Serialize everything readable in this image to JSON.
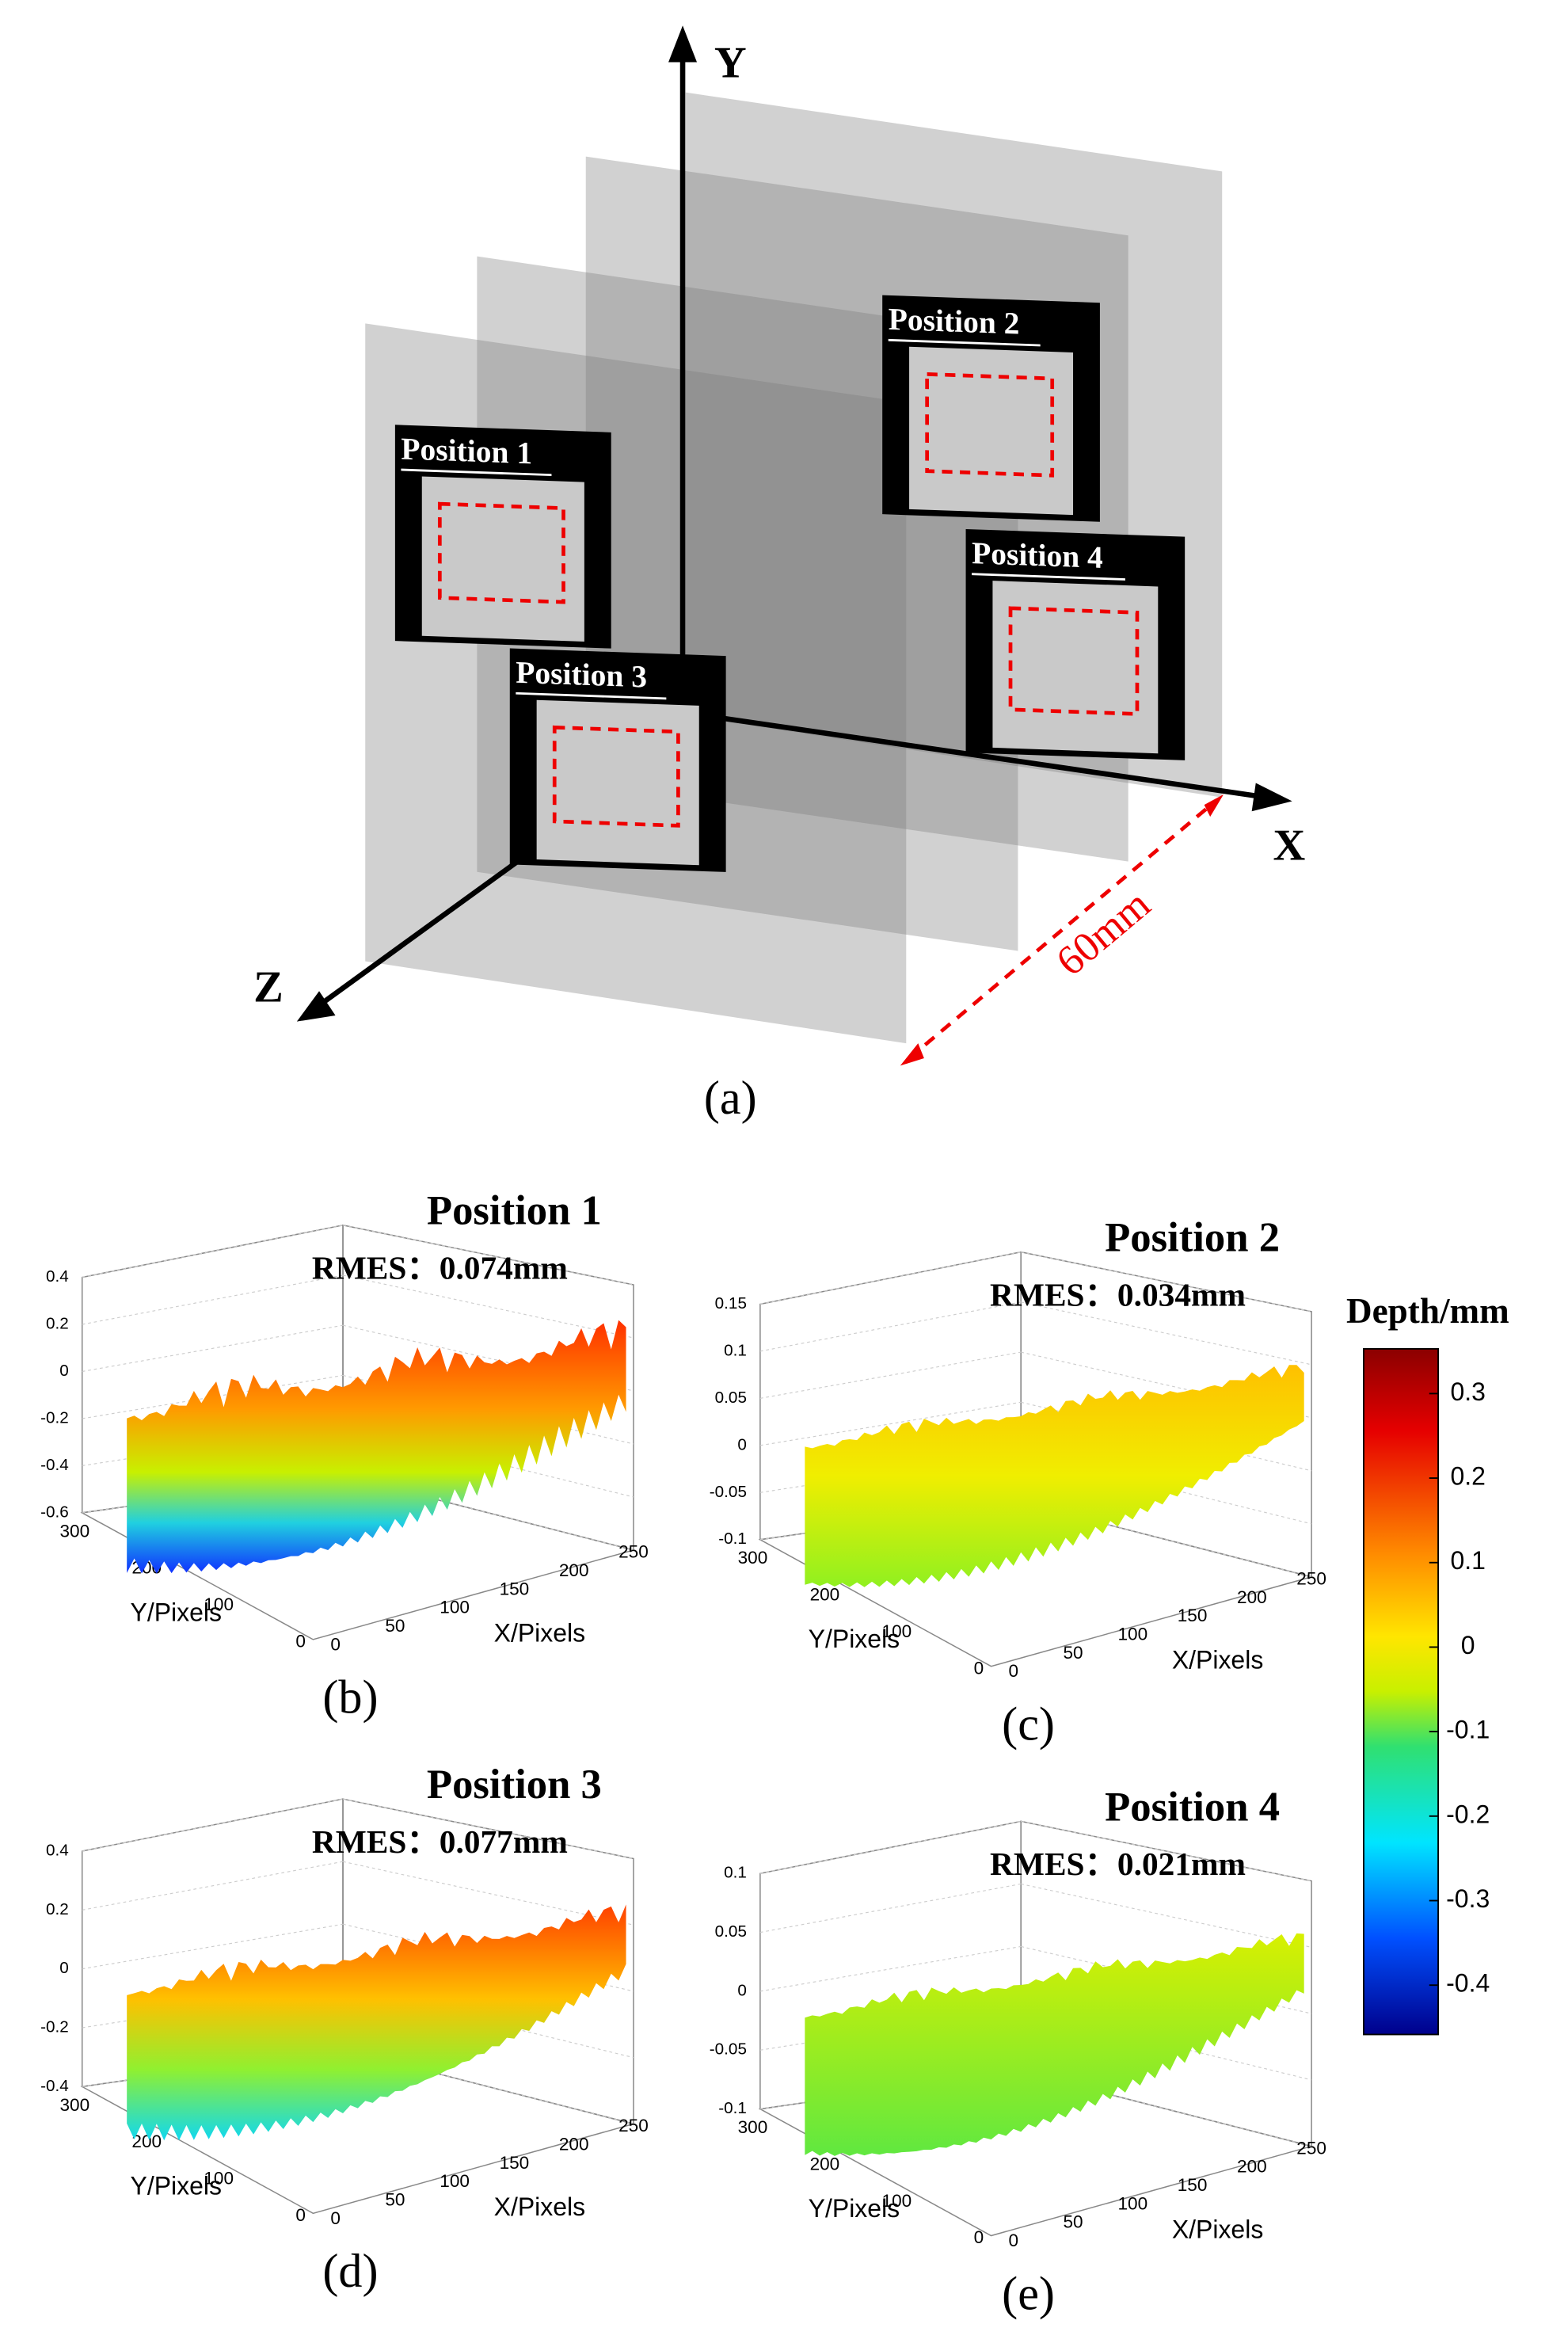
{
  "panel_a": {
    "axis_labels": [
      "Y",
      "X",
      "Z"
    ],
    "positions": [
      "Position 1",
      "Position 2",
      "Position 3",
      "Position 4"
    ],
    "distance": "60mm",
    "caption": "(a)"
  },
  "plots": [
    {
      "title": "Position 1",
      "rmes": "RMES：0.074mm",
      "z_ticks": [
        "0.4",
        "0.2",
        "0",
        "-0.2",
        "-0.4",
        "-0.6"
      ],
      "y_ticks": [
        "300",
        "200",
        "100",
        "0"
      ],
      "x_ticks": [
        "0",
        "50",
        "100",
        "150",
        "200",
        "250"
      ],
      "y_label": "Y/Pixels",
      "x_label": "X/Pixels",
      "caption": "(b)"
    },
    {
      "title": "Position 2",
      "rmes": "RMES：0.034mm",
      "z_ticks": [
        "0.15",
        "0.1",
        "0.05",
        "0",
        "-0.05",
        "-0.1"
      ],
      "y_ticks": [
        "300",
        "200",
        "100",
        "0"
      ],
      "x_ticks": [
        "0",
        "50",
        "100",
        "150",
        "200",
        "250"
      ],
      "y_label": "Y/Pixels",
      "x_label": "X/Pixels",
      "caption": "(c)"
    },
    {
      "title": "Position 3",
      "rmes": "RMES：0.077mm",
      "z_ticks": [
        "0.4",
        "0.2",
        "0",
        "-0.2",
        "-0.4"
      ],
      "y_ticks": [
        "300",
        "200",
        "100",
        "0"
      ],
      "x_ticks": [
        "0",
        "50",
        "100",
        "150",
        "200",
        "250"
      ],
      "y_label": "Y/Pixels",
      "x_label": "X/Pixels",
      "caption": "(d)"
    },
    {
      "title": "Position 4",
      "rmes": "RMES：0.021mm",
      "z_ticks": [
        "0.1",
        "0.05",
        "0",
        "-0.05",
        "-0.1"
      ],
      "y_ticks": [
        "300",
        "200",
        "100",
        "0"
      ],
      "x_ticks": [
        "0",
        "50",
        "100",
        "150",
        "200",
        "250"
      ],
      "y_label": "Y/Pixels",
      "x_label": "X/Pixels",
      "caption": "(e)"
    }
  ],
  "colorbar": {
    "title": "Depth/mm",
    "ticks": [
      "0.3",
      "0.2",
      "0.1",
      "0",
      "-0.1",
      "-0.2",
      "-0.3",
      "-0.4"
    ]
  }
}
